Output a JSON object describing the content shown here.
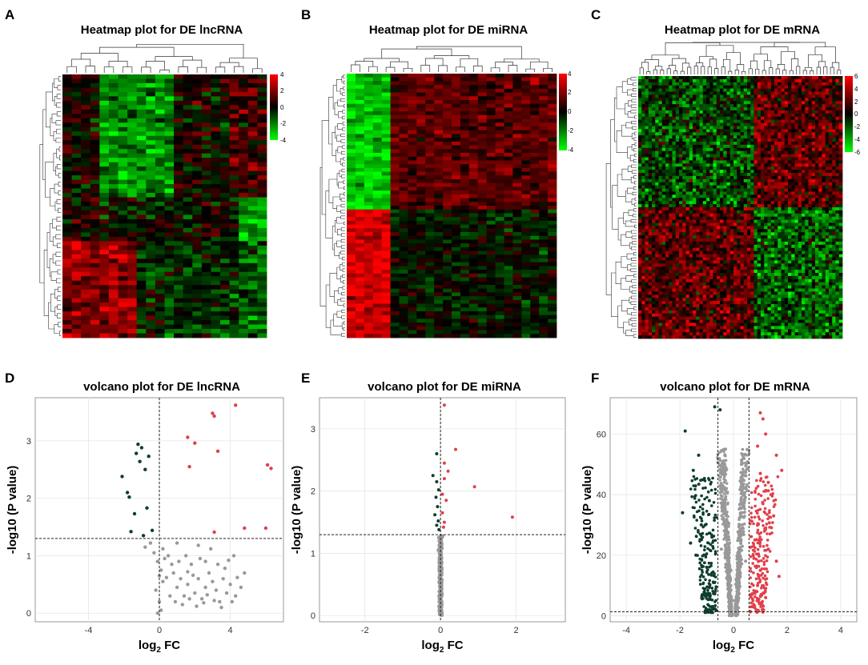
{
  "colors": {
    "heat_high": "#ff0000",
    "heat_low": "#00ff00",
    "heat_mid": "#000000",
    "up": "#e0404a",
    "down": "#0f3d2e",
    "ns": "#999999",
    "grid": "#e6e6e6"
  },
  "chart_data": [
    {
      "type": "heatmap",
      "panel": "A",
      "title": "Heatmap plot for DE lncRNA",
      "colorbar_ticks": [
        "4",
        "2",
        "0",
        "-2",
        "-4"
      ],
      "clustered": true
    },
    {
      "type": "heatmap",
      "panel": "B",
      "title": "Heatmap plot for DE miRNA",
      "colorbar_ticks": [
        "4",
        "2",
        "0",
        "-2",
        "-4"
      ],
      "clustered": true
    },
    {
      "type": "heatmap",
      "panel": "C",
      "title": "Heatmap plot for DE mRNA",
      "colorbar_ticks": [
        "6",
        "4",
        "2",
        "0",
        "-2",
        "-4",
        "-6"
      ],
      "clustered": true
    },
    {
      "type": "scatter",
      "panel": "D",
      "title": "volcano plot for DE lncRNA",
      "xlabel": "log2 FC",
      "ylabel": "-log10 (P value)",
      "xlim": [
        -7,
        7
      ],
      "ylim": [
        -0.15,
        3.75
      ],
      "xticks": [
        -4,
        0,
        4
      ],
      "yticks": [
        0,
        1,
        2,
        3
      ],
      "hline": 1.3,
      "vlines": [
        0
      ],
      "series": [
        {
          "name": "up",
          "points": [
            [
              4.3,
              3.62
            ],
            [
              3.0,
              3.48
            ],
            [
              3.1,
              3.43
            ],
            [
              1.6,
              3.06
            ],
            [
              2.0,
              2.96
            ],
            [
              3.3,
              2.82
            ],
            [
              1.7,
              2.55
            ],
            [
              6.1,
              2.58
            ],
            [
              6.3,
              2.52
            ],
            [
              3.1,
              1.41
            ],
            [
              4.8,
              1.48
            ],
            [
              6.0,
              1.48
            ]
          ]
        },
        {
          "name": "down",
          "points": [
            [
              -1.2,
              2.94
            ],
            [
              -1.0,
              2.88
            ],
            [
              -1.3,
              2.78
            ],
            [
              -0.6,
              2.73
            ],
            [
              -1.1,
              2.64
            ],
            [
              -0.8,
              2.5
            ],
            [
              -2.1,
              2.38
            ],
            [
              -1.8,
              2.1
            ],
            [
              -1.7,
              2.02
            ],
            [
              -0.7,
              1.83
            ],
            [
              -1.4,
              1.73
            ],
            [
              -0.4,
              1.44
            ],
            [
              -1.6,
              1.42
            ],
            [
              -0.9,
              1.35
            ]
          ]
        },
        {
          "name": "ns",
          "points": [
            [
              -0.5,
              1.22
            ],
            [
              -0.8,
              1.15
            ],
            [
              -0.3,
              1.05
            ],
            [
              -0.1,
              0.9
            ],
            [
              0.1,
              0.75
            ],
            [
              0.2,
              0.55
            ],
            [
              -0.2,
              0.4
            ],
            [
              0.0,
              0.2
            ],
            [
              0.1,
              0.05
            ],
            [
              0.3,
              0.95
            ],
            [
              0.5,
              1.0
            ],
            [
              0.8,
              0.7
            ],
            [
              1.0,
              0.45
            ],
            [
              1.2,
              0.6
            ],
            [
              1.4,
              0.3
            ],
            [
              1.6,
              0.5
            ],
            [
              1.8,
              0.85
            ],
            [
              2.0,
              0.35
            ],
            [
              2.2,
              0.6
            ],
            [
              2.4,
              0.25
            ],
            [
              2.6,
              0.45
            ],
            [
              2.8,
              0.7
            ],
            [
              3.0,
              0.55
            ],
            [
              3.2,
              0.4
            ],
            [
              3.4,
              0.2
            ],
            [
              3.6,
              0.6
            ],
            [
              3.8,
              0.35
            ],
            [
              4.0,
              0.5
            ],
            [
              4.3,
              0.3
            ],
            [
              4.6,
              0.45
            ],
            [
              1.1,
              0.9
            ],
            [
              1.5,
              1.0
            ],
            [
              2.3,
              0.95
            ],
            [
              2.9,
              1.12
            ],
            [
              3.3,
              0.85
            ],
            [
              4.2,
              1.0
            ],
            [
              0.6,
              0.3
            ],
            [
              0.9,
              0.2
            ],
            [
              1.3,
              0.15
            ],
            [
              1.7,
              0.25
            ],
            [
              2.1,
              0.12
            ],
            [
              2.5,
              0.18
            ],
            [
              3.1,
              0.22
            ],
            [
              3.5,
              0.1
            ],
            [
              4.4,
              0.62
            ],
            [
              4.8,
              0.7
            ],
            [
              2.7,
              0.32
            ],
            [
              1.9,
              0.66
            ],
            [
              0.4,
              0.62
            ],
            [
              3.7,
              0.78
            ],
            [
              2.2,
              1.18
            ],
            [
              1.0,
              1.22
            ],
            [
              0.2,
              1.12
            ],
            [
              -0.1,
              0.0
            ],
            [
              0.0,
              0.65
            ],
            [
              0.7,
              0.85
            ],
            [
              1.6,
              0.72
            ],
            [
              2.6,
              0.9
            ],
            [
              3.9,
              0.92
            ],
            [
              4.1,
              0.2
            ]
          ]
        }
      ]
    },
    {
      "type": "scatter",
      "panel": "E",
      "title": "volcano plot for DE miRNA",
      "xlabel": "log2 FC",
      "ylabel": "-log10 (P value)",
      "xlim": [
        -3.2,
        3.3
      ],
      "ylim": [
        -0.1,
        3.5
      ],
      "xticks": [
        -2,
        0,
        2
      ],
      "yticks": [
        0,
        1,
        2,
        3
      ],
      "hline": 1.3,
      "vlines": [
        0
      ],
      "series": [
        {
          "name": "up",
          "points": [
            [
              0.1,
              3.38
            ],
            [
              0.4,
              2.67
            ],
            [
              0.1,
              2.45
            ],
            [
              0.2,
              2.32
            ],
            [
              0.9,
              2.07
            ],
            [
              0.1,
              2.2
            ],
            [
              0.05,
              1.95
            ],
            [
              0.15,
              1.85
            ],
            [
              1.9,
              1.58
            ],
            [
              0.05,
              1.65
            ],
            [
              0.1,
              1.5
            ],
            [
              0.08,
              1.42
            ]
          ]
        },
        {
          "name": "down",
          "points": [
            [
              -0.1,
              2.6
            ],
            [
              -0.2,
              2.25
            ],
            [
              -0.1,
              2.15
            ],
            [
              -0.05,
              2.02
            ],
            [
              -0.12,
              1.9
            ],
            [
              -0.08,
              1.75
            ],
            [
              -0.15,
              1.62
            ],
            [
              -0.06,
              1.52
            ],
            [
              -0.1,
              1.45
            ],
            [
              -0.04,
              1.38
            ]
          ]
        },
        {
          "name": "ns",
          "points": [
            [
              -0.02,
              1.2
            ],
            [
              0.0,
              1.1
            ],
            [
              -0.03,
              1.0
            ],
            [
              0.02,
              0.9
            ],
            [
              0.0,
              0.8
            ],
            [
              -0.01,
              0.7
            ],
            [
              0.01,
              0.6
            ],
            [
              0.0,
              0.5
            ],
            [
              -0.02,
              0.4
            ],
            [
              0.02,
              0.3
            ],
            [
              0.0,
              0.2
            ],
            [
              0.01,
              0.1
            ],
            [
              0.0,
              0.02
            ],
            [
              -0.04,
              0.85
            ],
            [
              0.03,
              0.55
            ],
            [
              -0.05,
              1.25
            ],
            [
              0.04,
              1.15
            ],
            [
              -0.01,
              0.35
            ],
            [
              0.01,
              0.95
            ],
            [
              0.06,
              1.28
            ],
            [
              -0.06,
              1.05
            ],
            [
              0.0,
              0.65
            ],
            [
              0.0,
              0.45
            ],
            [
              0.0,
              0.25
            ]
          ]
        }
      ]
    },
    {
      "type": "scatter",
      "panel": "F",
      "title": "volcano plot for DE mRNA",
      "xlabel": "log2 FC",
      "ylabel": "-log10 (P value)",
      "xlim": [
        -4.6,
        4.6
      ],
      "ylim": [
        -2,
        72
      ],
      "xticks": [
        -4,
        -2,
        0,
        2,
        4
      ],
      "yticks": [
        0,
        20,
        40,
        60
      ],
      "hline": 1.3,
      "vlines": [
        -0.58,
        0.58
      ],
      "series": [
        {
          "name": "up",
          "points": [
            [
              1.0,
              67
            ],
            [
              1.1,
              65
            ],
            [
              1.2,
              60
            ],
            [
              0.9,
              56
            ],
            [
              1.6,
              53
            ],
            [
              1.8,
              48
            ],
            [
              1.0,
              47
            ],
            [
              1.3,
              44
            ],
            [
              1.4,
              40
            ],
            [
              1.1,
              37
            ],
            [
              1.5,
              33
            ],
            [
              1.2,
              29
            ],
            [
              0.8,
              25
            ],
            [
              1.3,
              22
            ],
            [
              1.6,
              18
            ],
            [
              1.7,
              13
            ],
            [
              0.9,
              10
            ],
            [
              1.2,
              6
            ],
            [
              0.7,
              3
            ],
            [
              1.0,
              15
            ]
          ]
        },
        {
          "name": "down",
          "points": [
            [
              -0.7,
              69
            ],
            [
              -0.5,
              68
            ],
            [
              -1.8,
              61
            ],
            [
              -1.3,
              53
            ],
            [
              -1.5,
              48
            ],
            [
              -1.1,
              45
            ],
            [
              -1.9,
              34
            ],
            [
              -0.9,
              38
            ],
            [
              -1.2,
              30
            ],
            [
              -0.8,
              26
            ],
            [
              -1.4,
              20
            ],
            [
              -1.0,
              16
            ],
            [
              -0.7,
              11
            ],
            [
              -1.1,
              7
            ],
            [
              -0.8,
              3
            ],
            [
              -1.6,
              24
            ]
          ]
        },
        {
          "name": "ns",
          "points": [
            [
              -0.3,
              55
            ],
            [
              0.3,
              50
            ],
            [
              -0.4,
              42
            ],
            [
              0.4,
              38
            ],
            [
              -0.2,
              30
            ],
            [
              0.2,
              25
            ],
            [
              -0.1,
              15
            ],
            [
              0.1,
              12
            ],
            [
              0.0,
              5
            ],
            [
              -0.45,
              22
            ],
            [
              0.45,
              18
            ]
          ]
        }
      ]
    }
  ]
}
